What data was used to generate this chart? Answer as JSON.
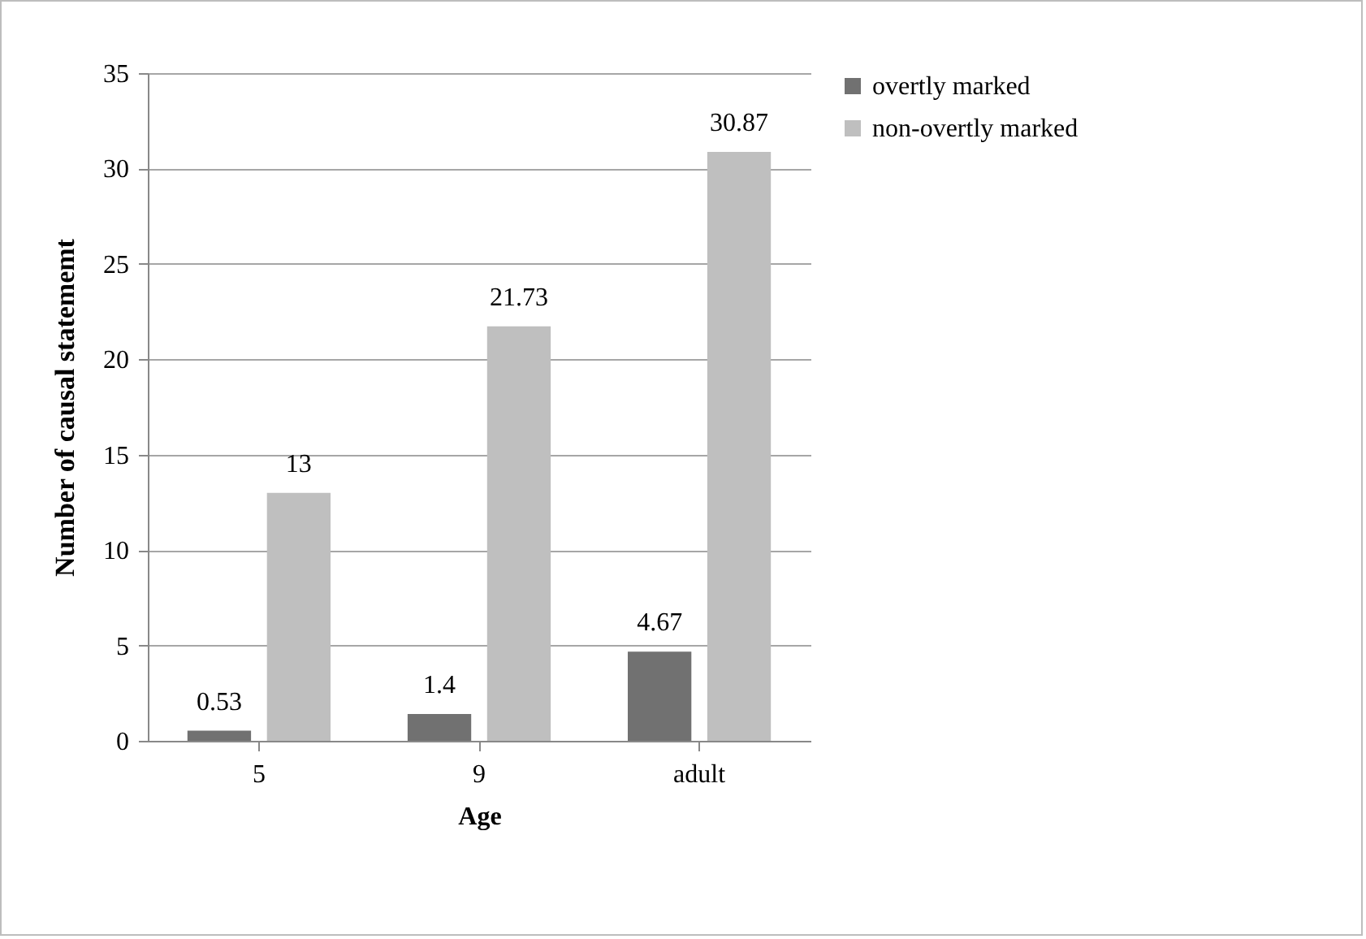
{
  "chart_data": {
    "type": "bar",
    "xlabel": "Age",
    "ylabel": "Number of causal statememt",
    "categories": [
      "5",
      "9",
      "adult"
    ],
    "series": [
      {
        "name": "overtly marked",
        "color": "#717171",
        "values": [
          0.53,
          1.4,
          4.67
        ]
      },
      {
        "name": "non-overtly marked",
        "color": "#bfbfbf",
        "values": [
          13,
          21.73,
          30.87
        ]
      }
    ],
    "ylim": [
      0,
      35
    ],
    "yticks": [
      0,
      5,
      10,
      15,
      20,
      25,
      30,
      35
    ],
    "grid": "y",
    "legend": "right",
    "data_labels": true
  }
}
